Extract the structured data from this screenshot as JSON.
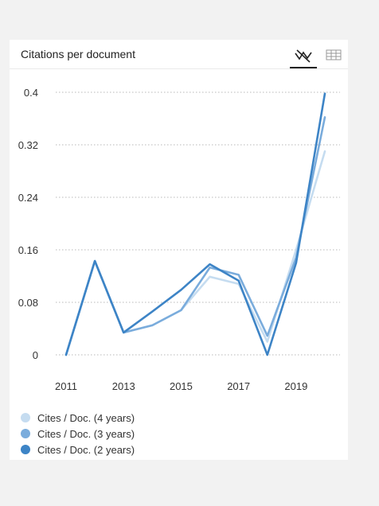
{
  "header": {
    "title": "Citations per document"
  },
  "icons": {
    "line_chart": "line-chart-icon",
    "table": "table-icon"
  },
  "colors": {
    "background": "#f2f2f2",
    "grid": "#b8b8b8",
    "axis_text": "#333333"
  },
  "chart_data": {
    "type": "line",
    "title": "Citations per document",
    "x": [
      2011,
      2012,
      2013,
      2014,
      2015,
      2016,
      2017,
      2018,
      2019,
      2020
    ],
    "x_tick_labels": [
      "2011",
      "2013",
      "2015",
      "2017",
      "2019"
    ],
    "x_tick_values": [
      2011,
      2013,
      2015,
      2017,
      2019
    ],
    "y_tick_labels": [
      "0",
      "0.08",
      "0.16",
      "0.24",
      "0.32",
      "0.4"
    ],
    "y_tick_values": [
      0,
      0.08,
      0.16,
      0.24,
      0.32,
      0.4
    ],
    "ylim": [
      0,
      0.4
    ],
    "xlim": [
      2011,
      2020
    ],
    "grid": "horizontal dotted",
    "legend_position": "bottom-left",
    "series": [
      {
        "name": "Cites / Doc. (4 years)",
        "color": "#c5dcf0",
        "values": [
          0,
          0.143,
          0.034,
          0.045,
          0.068,
          0.119,
          0.108,
          0.02,
          0.16,
          0.31
        ]
      },
      {
        "name": "Cites / Doc. (3 years)",
        "color": "#7aacdc",
        "values": [
          0,
          0.143,
          0.034,
          0.045,
          0.068,
          0.133,
          0.122,
          0.029,
          0.148,
          0.362
        ]
      },
      {
        "name": "Cites / Doc. (2 years)",
        "color": "#3d84c6",
        "values": [
          0,
          0.143,
          0.034,
          0.066,
          0.099,
          0.138,
          0.113,
          0,
          0.14,
          0.398
        ]
      }
    ]
  }
}
